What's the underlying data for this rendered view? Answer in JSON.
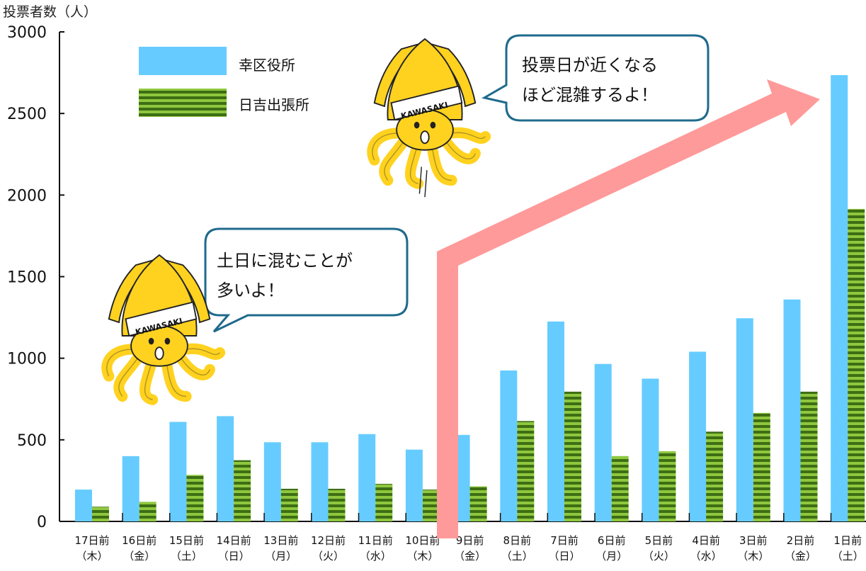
{
  "chart_data": {
    "type": "bar",
    "ylabel": "投票者数（人）",
    "ylim": [
      0,
      3000
    ],
    "yticks": [
      0,
      500,
      1000,
      1500,
      2000,
      2500,
      3000
    ],
    "categories": [
      [
        "17日前",
        "（木）"
      ],
      [
        "16日前",
        "（金）"
      ],
      [
        "15日前",
        "（土）"
      ],
      [
        "14日前",
        "（日）"
      ],
      [
        "13日前",
        "（月）"
      ],
      [
        "12日前",
        "（火）"
      ],
      [
        "11日前",
        "（水）"
      ],
      [
        "10日前",
        "（木）"
      ],
      [
        "9日前",
        "（金）"
      ],
      [
        "8日前",
        "（土）"
      ],
      [
        "7日前",
        "（日）"
      ],
      [
        "6日前",
        "（月）"
      ],
      [
        "5日前",
        "（火）"
      ],
      [
        "4日前",
        "（水）"
      ],
      [
        "3日前",
        "（木）"
      ],
      [
        "2日前",
        "（金）"
      ],
      [
        "1日前",
        "（土）"
      ]
    ],
    "series": [
      {
        "name": "幸区役所",
        "color": "#66ccff",
        "values": [
          195,
          400,
          610,
          645,
          485,
          485,
          535,
          440,
          530,
          925,
          1225,
          965,
          875,
          1040,
          1245,
          1360,
          2735
        ]
      },
      {
        "name": "日吉出張所",
        "color": "#4f8a1f",
        "stripe": "#8fc73e",
        "values": [
          90,
          120,
          285,
          375,
          200,
          200,
          230,
          195,
          215,
          615,
          795,
          400,
          430,
          550,
          665,
          795,
          1915
        ]
      }
    ],
    "legend_position": "top-left",
    "annotations": [
      {
        "lines": [
          "土日に混むことが",
          "多いよ！"
        ]
      },
      {
        "lines": [
          "投票日が近くなる",
          "ほど混雑するよ！"
        ]
      }
    ],
    "mascot_text": "KAWASAKI"
  }
}
